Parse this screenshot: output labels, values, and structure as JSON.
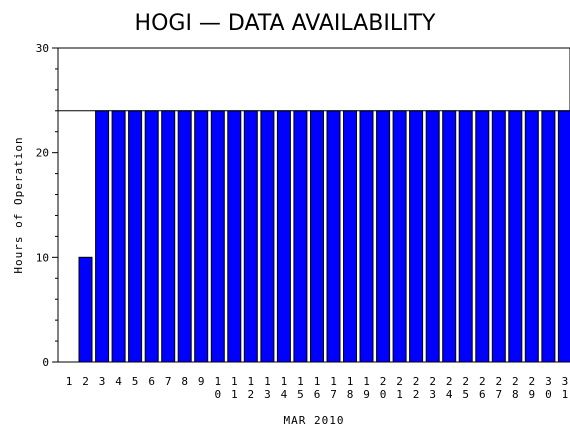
{
  "chart_data": {
    "type": "bar",
    "title": "HOGI — DATA AVAILABILITY",
    "xlabel": "MAR 2010",
    "ylabel": "Hours of Operation",
    "ylim": [
      0,
      30
    ],
    "yticks": [
      "0",
      "10",
      "20",
      "30"
    ],
    "reference_line": 24,
    "grid": false,
    "bar_color": "#0000ff",
    "categories": [
      "1",
      "2",
      "3",
      "4",
      "5",
      "6",
      "7",
      "8",
      "9",
      "10",
      "11",
      "12",
      "13",
      "14",
      "15",
      "16",
      "17",
      "18",
      "19",
      "20",
      "21",
      "22",
      "23",
      "24",
      "25",
      "26",
      "27",
      "28",
      "29",
      "30",
      "31"
    ],
    "values": [
      0,
      10,
      24,
      24,
      24,
      24,
      24,
      24,
      24,
      24,
      24,
      24,
      24,
      24,
      24,
      24,
      24,
      24,
      24,
      24,
      24,
      24,
      24,
      24,
      24,
      24,
      24,
      24,
      24,
      24,
      24
    ]
  }
}
